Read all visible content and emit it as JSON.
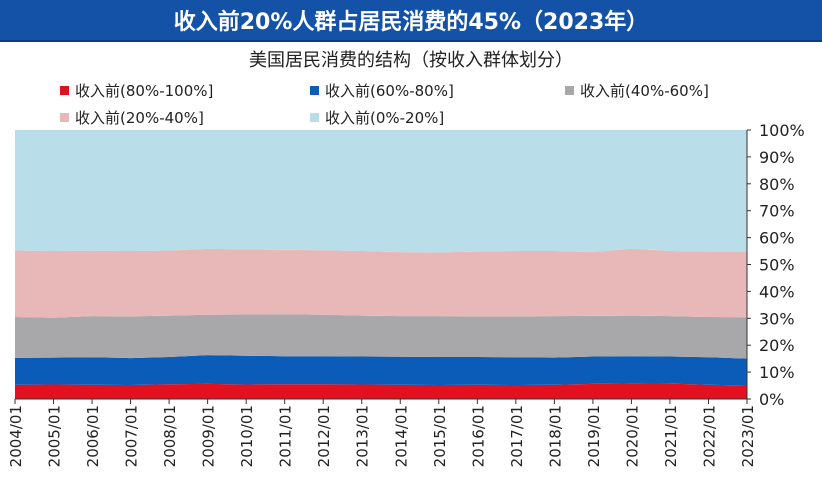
{
  "header": {
    "title": "收入前20%人群占居民消费的45%（2023年）"
  },
  "chart_data": {
    "type": "area",
    "stacked": "percent",
    "title": "美国居民消费的结构（按收入群体划分）",
    "xlabel": "",
    "ylabel": "",
    "ylim": [
      0,
      100
    ],
    "yticks": [
      "0%",
      "10%",
      "20%",
      "30%",
      "40%",
      "50%",
      "60%",
      "70%",
      "80%",
      "90%",
      "100%"
    ],
    "categories": [
      "2004/01",
      "2005/01",
      "2006/01",
      "2007/01",
      "2008/01",
      "2009/01",
      "2010/01",
      "2011/01",
      "2012/01",
      "2013/01",
      "2014/01",
      "2015/01",
      "2016/01",
      "2017/01",
      "2018/01",
      "2019/01",
      "2020/01",
      "2021/01",
      "2022/01",
      "2023/01"
    ],
    "legend_position": "top",
    "series": [
      {
        "name": "收入前(80%-100%]",
        "color": "#e3101f",
        "values": [
          5.3,
          5.4,
          5.3,
          5.2,
          5.5,
          5.6,
          5.4,
          5.5,
          5.5,
          5.4,
          5.3,
          5.2,
          5.3,
          5.2,
          5.3,
          5.6,
          5.8,
          5.7,
          5.3,
          5.0
        ]
      },
      {
        "name": "收入前(60%-80%]",
        "color": "#0a5cb8",
        "values": [
          10.0,
          10.0,
          10.2,
          10.0,
          10.1,
          10.7,
          10.7,
          10.4,
          10.4,
          10.4,
          10.4,
          10.4,
          10.3,
          10.3,
          10.1,
          10.2,
          10.1,
          10.1,
          10.2,
          10.0
        ]
      },
      {
        "name": "收入前(40%-60%]",
        "color": "#a8a8aa",
        "values": [
          15.2,
          14.8,
          15.3,
          15.5,
          15.4,
          15.0,
          15.3,
          15.6,
          15.4,
          15.2,
          15.1,
          15.2,
          15.1,
          15.2,
          15.4,
          15.1,
          15.1,
          15.0,
          15.0,
          15.4
        ]
      },
      {
        "name": "收入前(20%-40%]",
        "color": "#e8b8b8",
        "values": [
          24.7,
          24.8,
          24.3,
          24.3,
          24.2,
          24.5,
          24.2,
          24.0,
          24.0,
          24.0,
          23.8,
          23.7,
          24.1,
          24.3,
          24.2,
          23.7,
          24.9,
          24.2,
          24.3,
          24.4
        ]
      },
      {
        "name": "收入前(0%-20%]",
        "color": "#b9dde9",
        "values": [
          44.8,
          45.0,
          44.9,
          45.0,
          44.8,
          44.2,
          44.4,
          44.5,
          44.7,
          45.0,
          45.4,
          45.5,
          45.2,
          45.0,
          45.0,
          45.4,
          44.1,
          45.0,
          45.2,
          45.2
        ]
      }
    ]
  }
}
